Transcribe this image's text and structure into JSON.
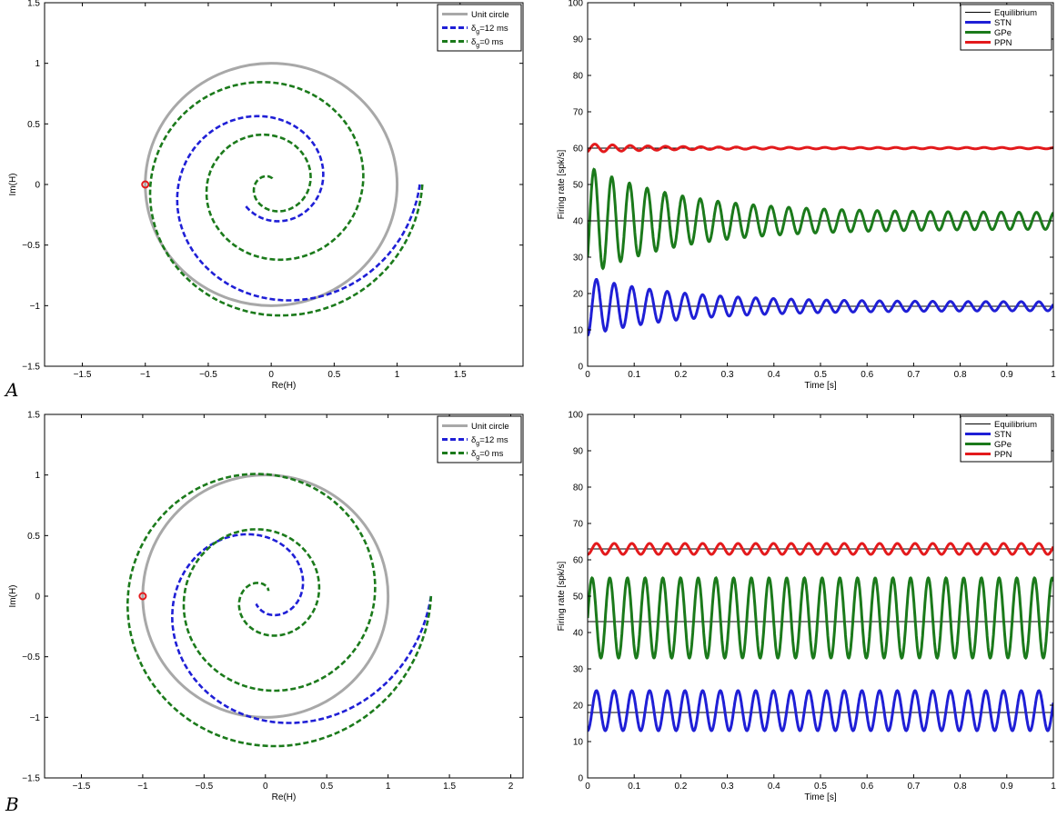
{
  "panels": [
    {
      "letter": "A"
    },
    {
      "letter": "B"
    }
  ],
  "chart_data": [
    {
      "id": "A-nyquist",
      "type": "line",
      "panel": "A",
      "xlabel": "Re(H)",
      "ylabel": "Im(H)",
      "xlim": [
        -1.8,
        2.0
      ],
      "ylim": [
        -1.5,
        1.5
      ],
      "xticks": [
        -1.5,
        -1,
        -0.5,
        0,
        0.5,
        1,
        1.5
      ],
      "xtick_labels": [
        "−1.5",
        "−1",
        "−0.5",
        "0",
        "0.5",
        "1",
        "1.5"
      ],
      "yticks": [
        -1.5,
        -1,
        -0.5,
        0,
        0.5,
        1,
        1.5
      ],
      "ytick_labels": [
        "−1.5",
        "−1",
        "−0.5",
        "0",
        "0.5",
        "1",
        "1.5"
      ],
      "legend_position": "top-right",
      "critical_point": {
        "x": -1,
        "y": 0,
        "color": "#e31a1c"
      },
      "series": [
        {
          "name": "Unit circle",
          "color": "#a8a8a8",
          "dashed": false,
          "width": 3,
          "kind": "circle"
        },
        {
          "name": "δg=12 ms",
          "name_main": "δ",
          "name_sub": "g",
          "name_rest": "=12 ms",
          "color": "#1f1fd6",
          "dashed": true,
          "width": 2.6,
          "kind": "spiral",
          "spiral": {
            "angle_start_deg": 0,
            "angle_span_deg": 500,
            "radius_start": 1.18,
            "radius_end": 0.27,
            "decay": 1.5
          }
        },
        {
          "name": "δg=0 ms",
          "name_main": "δ",
          "name_sub": "g",
          "name_rest": "=0 ms",
          "color": "#1b7a1b",
          "dashed": true,
          "width": 2.6,
          "kind": "spiral",
          "spiral": {
            "angle_start_deg": 0,
            "angle_span_deg": 1020,
            "radius_start": 1.2,
            "radius_end": 0.04,
            "decay": 1.2
          }
        }
      ]
    },
    {
      "id": "A-rates",
      "type": "line",
      "panel": "A",
      "xlabel": "Time [s]",
      "ylabel": "Firing rate [spk/s]",
      "xlim": [
        0,
        1
      ],
      "ylim": [
        0,
        100
      ],
      "xticks": [
        0,
        0.1,
        0.2,
        0.3,
        0.4,
        0.5,
        0.6,
        0.7,
        0.8,
        0.9,
        1
      ],
      "xtick_labels": [
        "0",
        "0.1",
        "0.2",
        "0.3",
        "0.4",
        "0.5",
        "0.6",
        "0.7",
        "0.8",
        "0.9",
        "1"
      ],
      "yticks": [
        0,
        10,
        20,
        30,
        40,
        50,
        60,
        70,
        80,
        90,
        100
      ],
      "ytick_labels": [
        "0",
        "10",
        "20",
        "30",
        "40",
        "50",
        "60",
        "70",
        "80",
        "90",
        "100"
      ],
      "legend_position": "top-right",
      "series": [
        {
          "name": "Equilibrium",
          "color": "#000000",
          "width": 1,
          "kind": "equilibrium",
          "levels": [
            16.5,
            40,
            60
          ]
        },
        {
          "name": "STN",
          "color": "#1f1fd6",
          "width": 3,
          "kind": "oscillation",
          "mean": 16.5,
          "amp": 8,
          "period": 0.038,
          "decay": 0.2,
          "start": 7
        },
        {
          "name": "GPe",
          "color": "#1b7a1b",
          "width": 3,
          "kind": "oscillation",
          "mean": 40,
          "amp": 15,
          "period": 0.038,
          "decay": 0.2,
          "start": 30
        },
        {
          "name": "PPN",
          "color": "#e31a1c",
          "width": 3,
          "kind": "oscillation",
          "mean": 60,
          "amp": 1.2,
          "period": 0.038,
          "decay": 0.15,
          "start": 59
        }
      ]
    },
    {
      "id": "B-nyquist",
      "type": "line",
      "panel": "B",
      "xlabel": "Re(H)",
      "ylabel": "Im(H)",
      "xlim": [
        -1.8,
        2.1
      ],
      "ylim": [
        -1.5,
        1.5
      ],
      "xticks": [
        -1.5,
        -1,
        -0.5,
        0,
        0.5,
        1,
        1.5,
        2
      ],
      "xtick_labels": [
        "−1.5",
        "−1",
        "−0.5",
        "0",
        "0.5",
        "1",
        "1.5",
        "2"
      ],
      "yticks": [
        -1.5,
        -1,
        -0.5,
        0,
        0.5,
        1,
        1.5
      ],
      "ytick_labels": [
        "−1.5",
        "−1",
        "−0.5",
        "0",
        "0.5",
        "1",
        "1.5"
      ],
      "legend_position": "top-right",
      "critical_point": {
        "x": -1,
        "y": 0,
        "color": "#e31a1c"
      },
      "series": [
        {
          "name": "Unit circle",
          "color": "#a8a8a8",
          "dashed": false,
          "width": 3,
          "kind": "circle"
        },
        {
          "name": "δg=12 ms",
          "name_main": "δ",
          "name_sub": "g",
          "name_rest": "=12 ms",
          "color": "#1f1fd6",
          "dashed": true,
          "width": 2.6,
          "kind": "spiral",
          "spiral": {
            "angle_start_deg": 0,
            "angle_span_deg": 500,
            "radius_start": 1.35,
            "radius_end": 0.1,
            "decay": 1.5
          }
        },
        {
          "name": "δg=0 ms",
          "name_main": "δ",
          "name_sub": "g",
          "name_rest": "=0 ms",
          "color": "#1b7a1b",
          "dashed": true,
          "width": 2.6,
          "kind": "spiral",
          "spiral": {
            "angle_start_deg": 0,
            "angle_span_deg": 1020,
            "radius_start": 1.35,
            "radius_end": 0.05,
            "decay": 1.0
          }
        }
      ]
    },
    {
      "id": "B-rates",
      "type": "line",
      "panel": "B",
      "xlabel": "Time [s]",
      "ylabel": "Firing rate [spk/s]",
      "xlim": [
        0,
        1
      ],
      "ylim": [
        0,
        100
      ],
      "xticks": [
        0,
        0.1,
        0.2,
        0.3,
        0.4,
        0.5,
        0.6,
        0.7,
        0.8,
        0.9,
        1
      ],
      "xtick_labels": [
        "0",
        "0.1",
        "0.2",
        "0.3",
        "0.4",
        "0.5",
        "0.6",
        "0.7",
        "0.8",
        "0.9",
        "1"
      ],
      "yticks": [
        0,
        10,
        20,
        30,
        40,
        50,
        60,
        70,
        80,
        90,
        100
      ],
      "ytick_labels": [
        "0",
        "10",
        "20",
        "30",
        "40",
        "50",
        "60",
        "70",
        "80",
        "90",
        "100"
      ],
      "legend_position": "top-right",
      "series": [
        {
          "name": "Equilibrium",
          "color": "#000000",
          "width": 1,
          "kind": "equilibrium",
          "levels": [
            18,
            43,
            63
          ]
        },
        {
          "name": "STN",
          "color": "#1f1fd6",
          "width": 3,
          "kind": "oscillation",
          "mean": 18.5,
          "amp": 5.5,
          "period": 0.038,
          "decay": 0,
          "start": 9
        },
        {
          "name": "GPe",
          "color": "#1b7a1b",
          "width": 3,
          "kind": "oscillation",
          "mean": 44,
          "amp": 11,
          "period": 0.038,
          "decay": 0,
          "start": 44
        },
        {
          "name": "PPN",
          "color": "#e31a1c",
          "width": 3,
          "kind": "oscillation",
          "mean": 63,
          "amp": 1.5,
          "period": 0.038,
          "decay": 0,
          "start": 61
        }
      ]
    }
  ]
}
